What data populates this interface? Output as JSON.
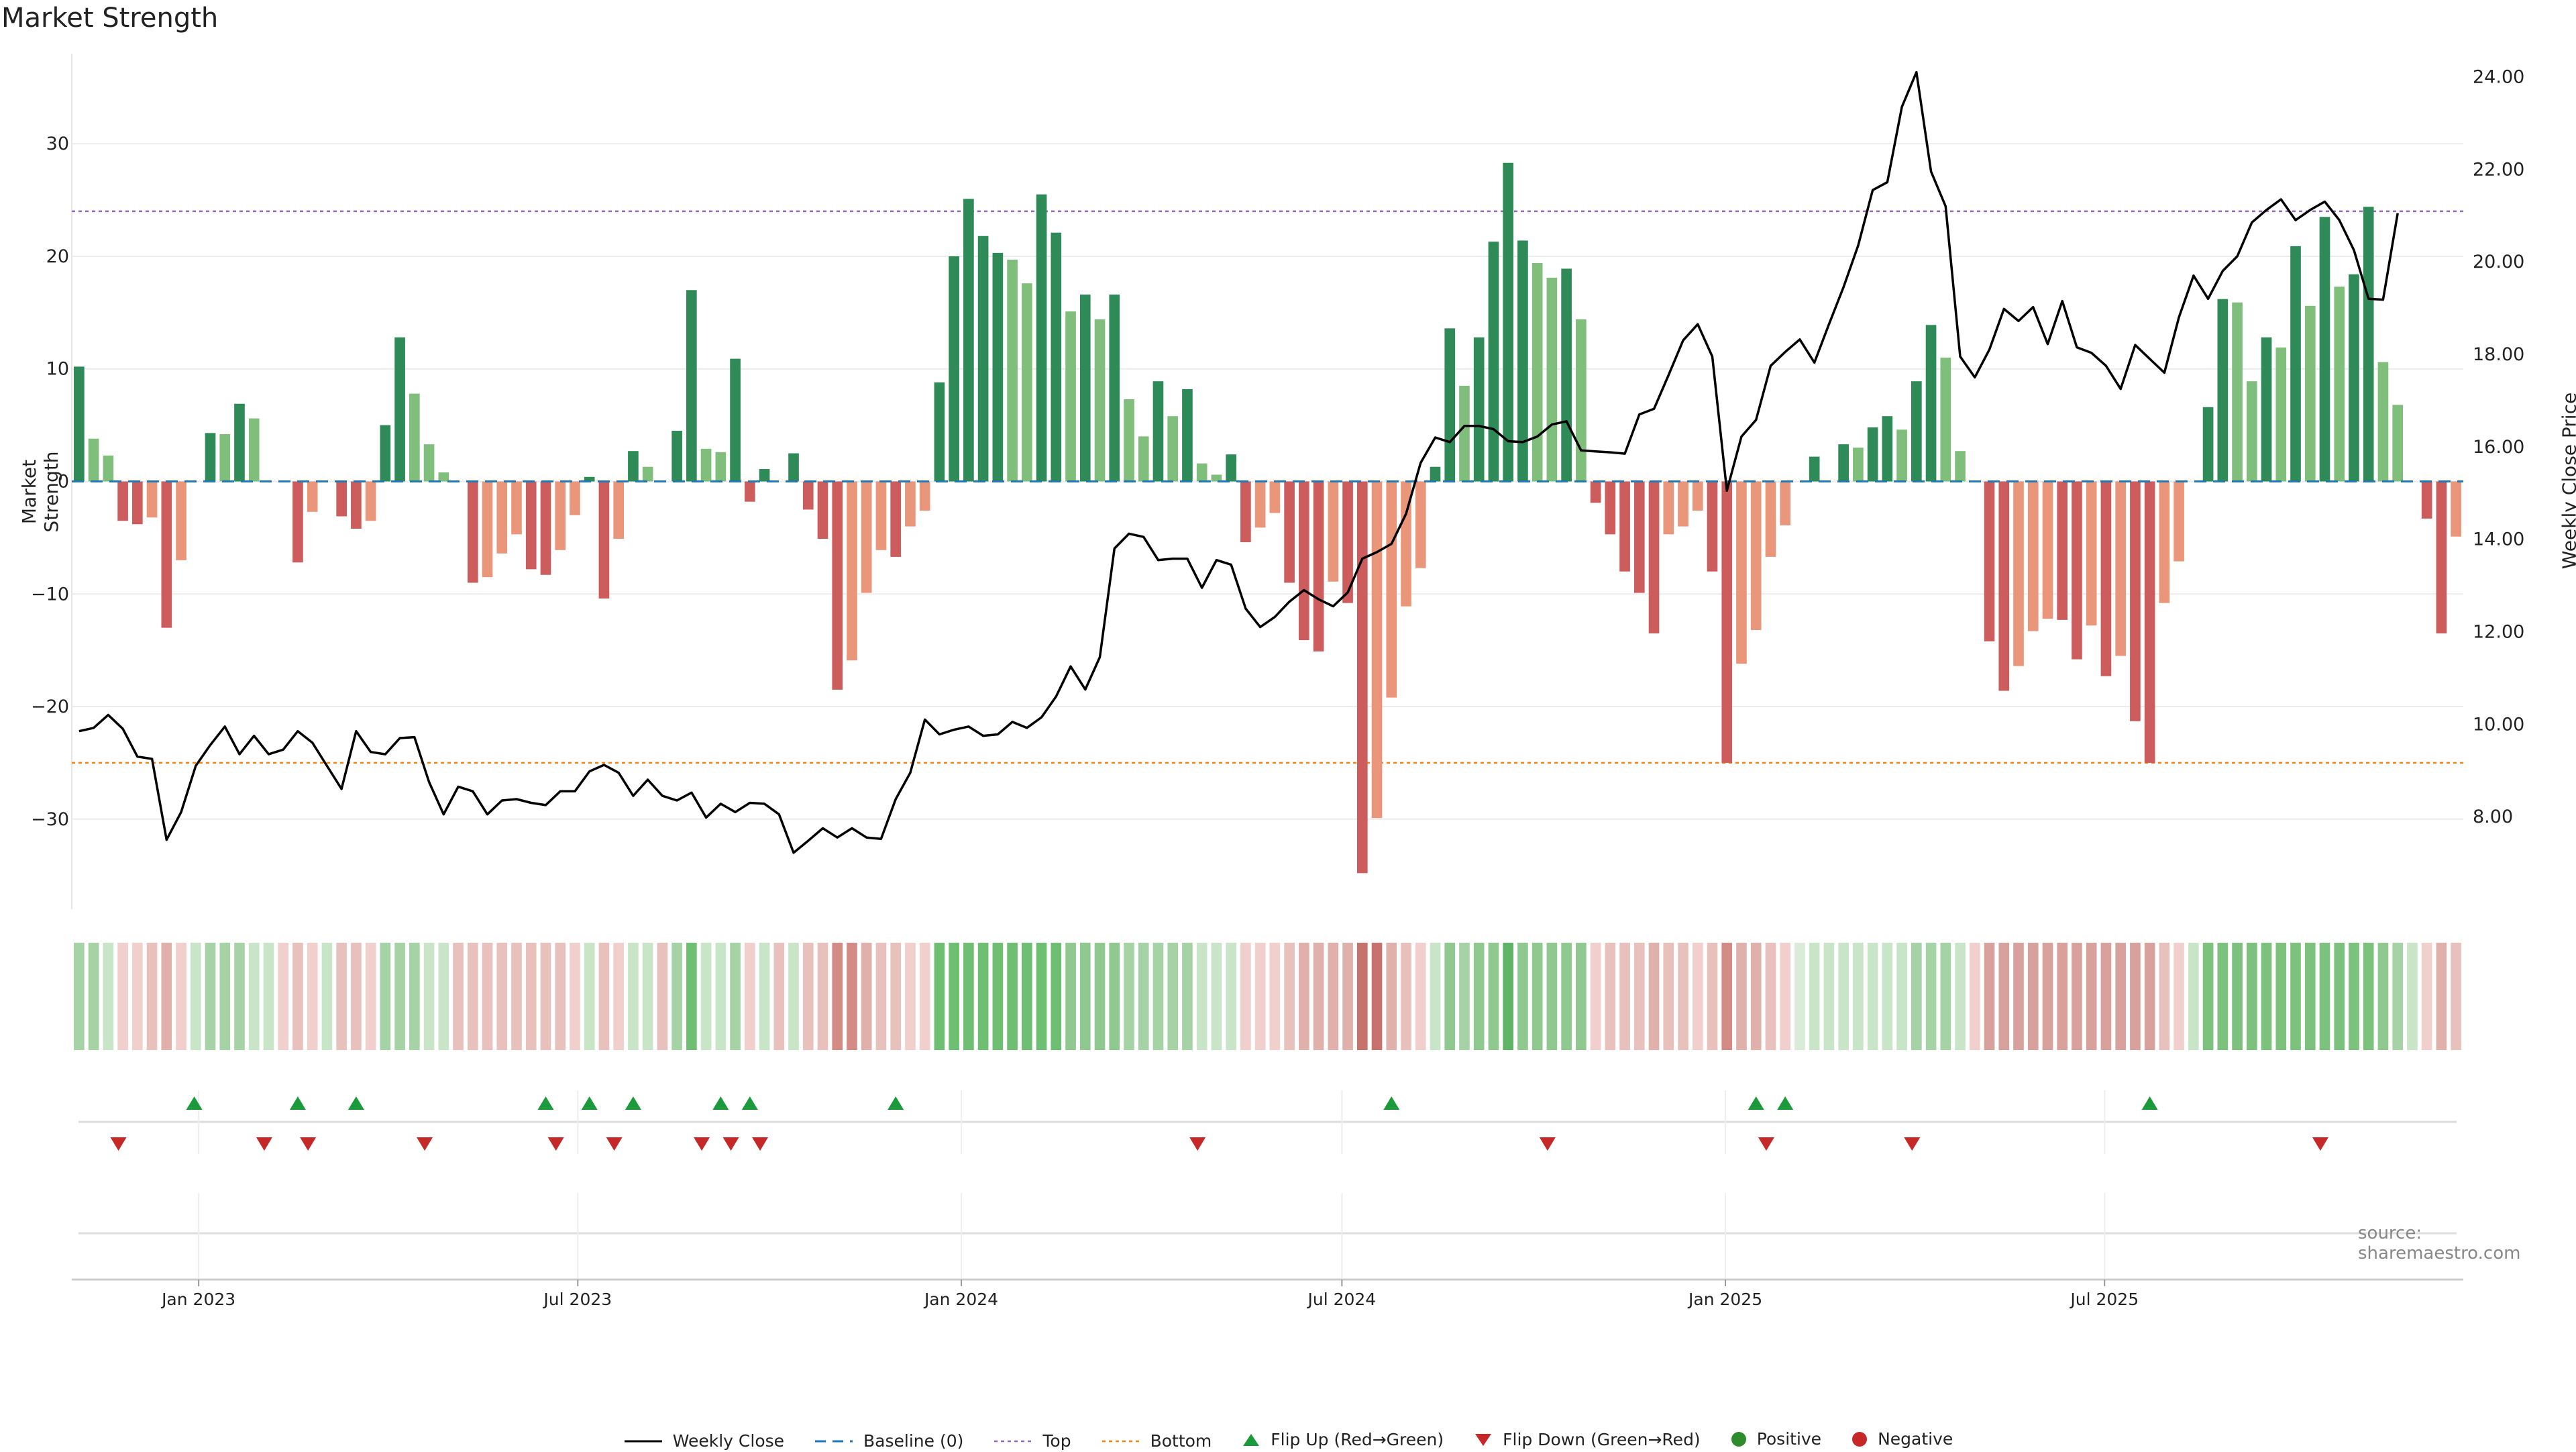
{
  "title": "Market Strength",
  "source": "source: sharemaestro.com",
  "colors": {
    "pos_strong": "#2e8b57",
    "pos_weak": "#7fbf7b",
    "neg_strong": "#cd5c5c",
    "neg_weak": "#e9967a",
    "line": "#000000",
    "baseline": "#1f77b4",
    "top": "#9467bd",
    "bottom": "#ff7f0e",
    "flip_up": "#1a9a3a",
    "flip_down": "#c62828"
  },
  "chart_data": {
    "type": "bar+line",
    "title": "Market Strength",
    "ylabel_left": "Market Strength",
    "ylabel_right": "Weekly Close Price",
    "ylim_left": [
      -38,
      38
    ],
    "yticks_left": [
      -30,
      -20,
      -10,
      0,
      10,
      20,
      30
    ],
    "ylim_right": [
      6.0,
      24.5
    ],
    "yticks_right": [
      "8.00",
      "10.00",
      "12.00",
      "14.00",
      "16.00",
      "18.00",
      "20.00",
      "22.00",
      "24.00"
    ],
    "yticks_right_values": [
      8,
      10,
      12,
      14,
      16,
      18,
      20,
      22,
      24
    ],
    "x_tick_labels": [
      "Jan 2023",
      "Jul 2023",
      "Jan 2024",
      "Jul 2024",
      "Jan 2025",
      "Jul 2025"
    ],
    "x_tick_weeks": [
      8.7,
      34.7,
      61.0,
      87.1,
      113.4,
      139.4
    ],
    "top_level": 24,
    "bottom_level": -25,
    "baseline": 0,
    "strength": [
      10.2,
      3.8,
      2.3,
      -3.5,
      -3.8,
      -3.2,
      -13,
      -7,
      0,
      4.3,
      4.2,
      6.9,
      5.6,
      0,
      0,
      -7.2,
      -2.7,
      0,
      -3.1,
      -4.2,
      -3.5,
      5,
      12.8,
      7.8,
      3.3,
      0.8,
      0,
      -9,
      -8.5,
      -6.4,
      -4.7,
      -7.8,
      -8.3,
      -6.1,
      -3,
      0.4,
      -10.4,
      -5.1,
      2.7,
      1.3,
      0,
      4.5,
      17,
      2.9,
      2.6,
      10.9,
      -1.8,
      1.1,
      0,
      2.5,
      -2.5,
      -5.1,
      -18.5,
      -15.9,
      -9.9,
      -6.1,
      -6.7,
      -4,
      -2.6,
      8.8,
      20,
      25.1,
      21.8,
      20.3,
      19.7,
      17.6,
      25.5,
      22.1,
      15.1,
      16.6,
      14.4,
      16.6,
      7.3,
      4,
      8.9,
      5.8,
      8.2,
      1.6,
      0.6,
      2.4,
      -5.4,
      -4.1,
      -2.8,
      -9,
      -14.1,
      -15.1,
      -8.9,
      -10.8,
      -34.8,
      -29.9,
      -19.2,
      -11.1,
      -7.7,
      1.3,
      13.6,
      8.5,
      12.8,
      21.3,
      28.3,
      21.4,
      19.4,
      18.1,
      18.9,
      14.4,
      -1.9,
      -4.7,
      -8,
      -9.9,
      -13.5,
      -4.7,
      -4,
      -2.6,
      -8,
      -25,
      -16.2,
      -13.2,
      -6.7,
      -3.9,
      0,
      2.2,
      0,
      3.3,
      3,
      4.8,
      5.8,
      4.6,
      8.9,
      13.9,
      11,
      2.7,
      0,
      -14.2,
      -18.6,
      -16.4,
      -13.3,
      -12.2,
      -12.3,
      -15.8,
      -12.8,
      -17.3,
      -15.5,
      -21.3,
      -25,
      -10.8,
      -7.1,
      0,
      6.6,
      16.2,
      15.9,
      8.9,
      12.8,
      11.9,
      20.9,
      15.6,
      23.5,
      17.3,
      18.4,
      24.4,
      10.6,
      6.8,
      0,
      -3.3,
      -13.5,
      -4.9
    ],
    "weekly_close": [
      9.85,
      9.92,
      10.2,
      9.9,
      9.3,
      9.25,
      7.5,
      8.1,
      9.1,
      9.55,
      9.95,
      9.35,
      9.75,
      9.35,
      9.45,
      9.85,
      9.6,
      9.1,
      8.6,
      9.85,
      9.4,
      9.35,
      9.7,
      9.72,
      8.75,
      8.05,
      8.65,
      8.55,
      8.05,
      8.35,
      8.38,
      8.3,
      8.25,
      8.55,
      8.55,
      8.98,
      9.12,
      8.95,
      8.45,
      8.8,
      8.45,
      8.35,
      8.52,
      7.98,
      8.28,
      8.1,
      8.3,
      8.28,
      8.05,
      7.22,
      7.48,
      7.75,
      7.55,
      7.75,
      7.55,
      7.52,
      8.38,
      8.95,
      10.1,
      9.78,
      9.88,
      9.95,
      9.75,
      9.78,
      10.05,
      9.92,
      10.15,
      10.6,
      11.25,
      10.75,
      11.45,
      13.8,
      14.12,
      14.05,
      13.55,
      13.58,
      13.58,
      12.95,
      13.55,
      13.45,
      12.5,
      12.1,
      12.32,
      12.65,
      12.9,
      12.7,
      12.55,
      12.85,
      13.58,
      13.72,
      13.9,
      14.55,
      15.65,
      16.2,
      16.1,
      16.45,
      16.45,
      16.38,
      16.12,
      16.1,
      16.22,
      16.48,
      16.55,
      15.92,
      15.9,
      15.88,
      15.85,
      16.7,
      16.82,
      17.55,
      18.3,
      18.65,
      17.95,
      15.05,
      16.22,
      16.58,
      17.75,
      18.05,
      18.32,
      17.82,
      18.65,
      19.45,
      20.35,
      21.55,
      21.72,
      23.35,
      24.1,
      21.95,
      21.2,
      17.95,
      17.5,
      18.1,
      18.98,
      18.72,
      19.02,
      18.22,
      19.15,
      18.15,
      18.03,
      17.75,
      17.25,
      18.2,
      17.9,
      17.6,
      18.8,
      19.7,
      19.2,
      19.8,
      20.12,
      20.85,
      21.12,
      21.35,
      20.9,
      21.12,
      21.3,
      20.9,
      20.25,
      19.2,
      19.18,
      21.05
    ],
    "regime_colors": [
      "#a5d3a5",
      "#a5d3a5",
      "#c8e5c8",
      "#f0cfcc",
      "#f0cfcc",
      "#e8c1bd",
      "#e0b0ab",
      "#f0cfcc",
      "#c8e5c8",
      "#a5d3a5",
      "#a5d3a5",
      "#a5d3a5",
      "#c8e5c8",
      "#c8e5c8",
      "#f0cfcc",
      "#e8c1bd",
      "#f0cfcc",
      "#c8e5c8",
      "#e8c1bd",
      "#e8c1bd",
      "#f0cfcc",
      "#a5d3a5",
      "#a5d3a5",
      "#a5d3a5",
      "#c8e5c8",
      "#c8e5c8",
      "#e8c1bd",
      "#e8c1bd",
      "#e8c1bd",
      "#e8c1bd",
      "#e8c1bd",
      "#e8c1bd",
      "#e8c1bd",
      "#e8c1bd",
      "#f0cfcc",
      "#c8e5c8",
      "#e8c1bd",
      "#f0cfcc",
      "#c8e5c8",
      "#c8e5c8",
      "#e8c1bd",
      "#a5d3a5",
      "#6fbf73",
      "#c8e5c8",
      "#c8e5c8",
      "#a5d3a5",
      "#f0cfcc",
      "#c8e5c8",
      "#e8c1bd",
      "#c8e5c8",
      "#e8c1bd",
      "#e8c1bd",
      "#d48b86",
      "#d48b86",
      "#e0b0ab",
      "#e8c1bd",
      "#e8c1bd",
      "#f0cfcc",
      "#f0cfcc",
      "#6fbf73",
      "#6fbf73",
      "#6fbf73",
      "#6fbf73",
      "#6fbf73",
      "#6fbf73",
      "#6fbf73",
      "#6fbf73",
      "#6fbf73",
      "#8fc98f",
      "#8fc98f",
      "#8fc98f",
      "#8fc98f",
      "#a5d3a5",
      "#a5d3a5",
      "#a5d3a5",
      "#a5d3a5",
      "#a5d3a5",
      "#c8e5c8",
      "#c8e5c8",
      "#c8e5c8",
      "#f0cfcc",
      "#f0cfcc",
      "#f0cfcc",
      "#e8c1bd",
      "#e0b0ab",
      "#e0b0ab",
      "#e0b0ab",
      "#e0b0ab",
      "#c8726d",
      "#c8726d",
      "#e0b0ab",
      "#e8c1bd",
      "#f0cfcc",
      "#c8e5c8",
      "#8fc98f",
      "#a5d3a5",
      "#8fc98f",
      "#8fc98f",
      "#5fb565",
      "#8fc98f",
      "#8fc98f",
      "#8fc98f",
      "#8fc98f",
      "#8fc98f",
      "#f0cfcc",
      "#e8c1bd",
      "#e8c1bd",
      "#e8c1bd",
      "#e0b0ab",
      "#e8c1bd",
      "#e8c1bd",
      "#f0cfcc",
      "#e8c1bd",
      "#d48b86",
      "#e0b0ab",
      "#e0b0ab",
      "#e8c1bd",
      "#f0cfcc",
      "#d8ecd8",
      "#c8e5c8",
      "#c8e5c8",
      "#c8e5c8",
      "#c8e5c8",
      "#c8e5c8",
      "#c8e5c8",
      "#c8e5c8",
      "#a5d3a5",
      "#a5d3a5",
      "#a5d3a5",
      "#c8e5c8",
      "#f0cfcc",
      "#d9a19c",
      "#d9a19c",
      "#d9a19c",
      "#d9a19c",
      "#d9a19c",
      "#d9a19c",
      "#d9a19c",
      "#d9a19c",
      "#d9a19c",
      "#d9a19c",
      "#d9a19c",
      "#d9a19c",
      "#e8c1bd",
      "#f0cfcc",
      "#c8e5c8",
      "#7cc27c",
      "#7cc27c",
      "#7cc27c",
      "#7cc27c",
      "#7cc27c",
      "#7cc27c",
      "#7cc27c",
      "#7cc27c",
      "#7cc27c",
      "#7cc27c",
      "#7cc27c",
      "#7cc27c",
      "#8fc98f",
      "#a5d3a5",
      "#c8e5c8",
      "#f0cfcc",
      "#e0b0ab",
      "#e8c1bd"
    ],
    "flip_up_weeks": [
      8.4,
      15.5,
      19.5,
      32.5,
      35.5,
      38.5,
      44.5,
      46.5,
      56.5,
      90.5,
      115.5,
      117.5,
      142.5
    ],
    "flip_down_weeks": [
      3.2,
      13.2,
      16.2,
      24.2,
      33.2,
      37.2,
      43.2,
      45.2,
      47.2,
      77.2,
      101.2,
      116.2,
      126.2,
      154.2
    ]
  },
  "legend": [
    {
      "label": "Weekly Close",
      "kind": "line"
    },
    {
      "label": "Baseline (0)",
      "kind": "baseline"
    },
    {
      "label": "Top",
      "kind": "top"
    },
    {
      "label": "Bottom",
      "kind": "bottom"
    },
    {
      "label": "Flip Up (Red→Green)",
      "kind": "flip_up"
    },
    {
      "label": "Flip Down (Green→Red)",
      "kind": "flip_down"
    },
    {
      "label": "Positive",
      "kind": "positive"
    },
    {
      "label": "Negative",
      "kind": "negative"
    }
  ]
}
